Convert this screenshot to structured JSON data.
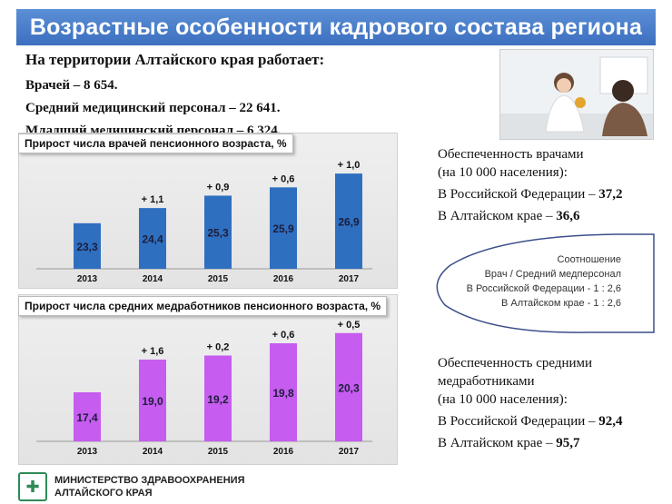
{
  "title": "Возрастные особенности кадрового состава региона",
  "stats": {
    "intro": "На территории Алтайского края работает:",
    "doctors": "Врачей – 8 654.",
    "mid_staff": "Средний медицинский персонал – 22 641.",
    "junior_staff": "Младший медицинский персонал – 6 324."
  },
  "doctor_supply": {
    "heading1": "Обеспеченность врачами",
    "heading2": "(на 10 000 населения):",
    "rf_label": "В Российской Федерации –",
    "rf_value": "37,2",
    "ak_label": "В Алтайском крае –",
    "ak_value": "36,6"
  },
  "ratio": {
    "line1": "Соотношение",
    "line2": "Врач / Средний медперсонал",
    "line3": "В Российской Федерации - 1 : 2,6",
    "line4": "В Алтайском крае  - 1 : 2,6"
  },
  "nurse_supply": {
    "heading1": "Обеспеченность средними",
    "heading2": "медработниками",
    "heading3": "(на 10 000 населения):",
    "rf_label": "В Российской Федерации –",
    "rf_value": "92,4",
    "ak_label": "В Алтайском крае –",
    "ak_value": "95,7"
  },
  "footer": {
    "line1": "МИНИСТЕРСТВО ЗДРАВООХРАНЕНИЯ",
    "line2": "АЛТАЙСКОГО КРАЯ"
  },
  "colors": {
    "title_bar": "#3c6fbf",
    "doctor_bars": "#2f6fc0",
    "nurse_bars": "#c65cf0",
    "ellipse_border": "#3a4f8a"
  },
  "chart_data": [
    {
      "type": "bar",
      "title": "Прирост числа врачей пенсионного возраста, %",
      "categories": [
        "2013",
        "2014",
        "2015",
        "2016",
        "2017"
      ],
      "values": [
        23.3,
        24.4,
        25.3,
        25.9,
        26.9
      ],
      "value_labels": [
        "23,3",
        "24,4",
        "25,3",
        "25,9",
        "26,9"
      ],
      "increments": [
        "",
        "+ 1,1",
        "+ 0,9",
        "+ 0,6",
        "+ 1,0"
      ],
      "ylim": [
        20,
        27.5
      ]
    },
    {
      "type": "bar",
      "title": "Прирост числа средних медработников  пенсионного возраста, %",
      "categories": [
        "2013",
        "2014",
        "2015",
        "2016",
        "2017"
      ],
      "values": [
        17.4,
        19.0,
        19.2,
        19.8,
        20.3
      ],
      "value_labels": [
        "17,4",
        "19,0",
        "19,2",
        "19,8",
        "20,3"
      ],
      "increments": [
        "",
        "+ 1,6",
        "+ 0,2",
        "+ 0,6",
        "+ 0,5"
      ],
      "ylim": [
        15,
        20.6
      ]
    }
  ]
}
